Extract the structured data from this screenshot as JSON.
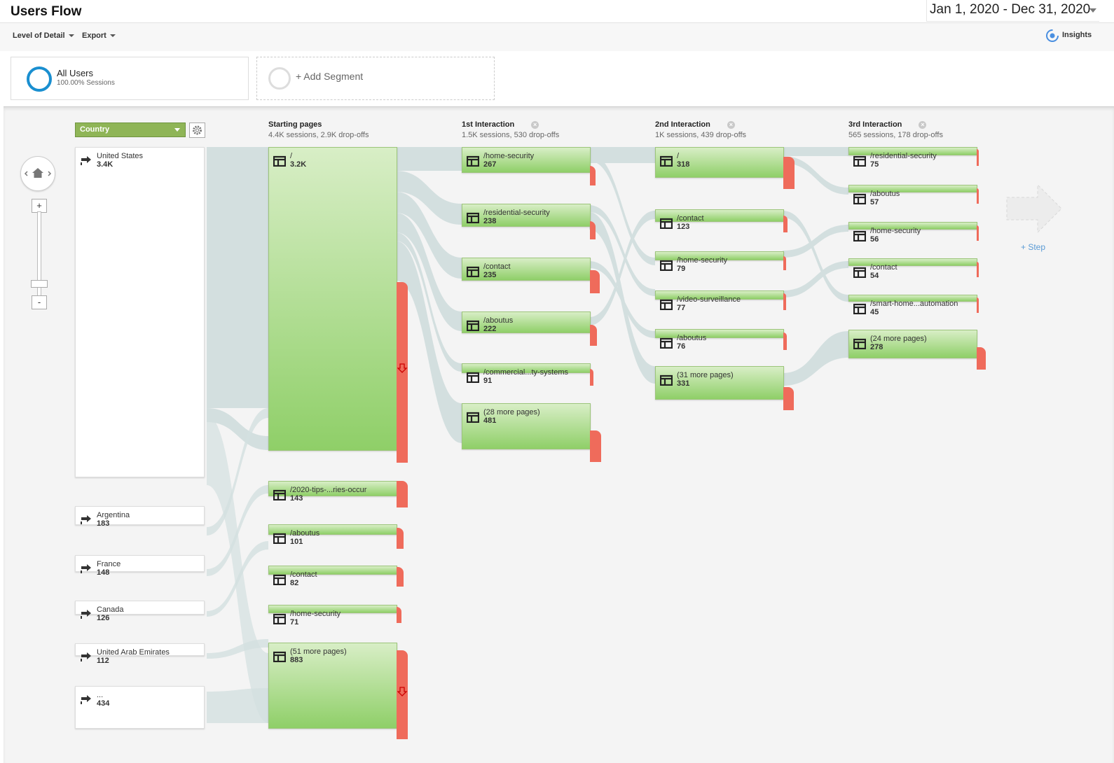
{
  "header": {
    "title": "Users Flow",
    "date_range": "Jan 1, 2020 - Dec 31, 2020"
  },
  "toolbar": {
    "level_of_detail": "Level of Detail",
    "export": "Export",
    "insights": "Insights"
  },
  "segments": {
    "all_users": {
      "name": "All Users",
      "sub": "100.00% Sessions"
    },
    "add": "+ Add Segment"
  },
  "dimension": {
    "selected": "Country"
  },
  "columns": {
    "starting": {
      "title": "Starting pages",
      "summary": "4.4K sessions, 2.9K drop-offs"
    },
    "first": {
      "title": "1st Interaction",
      "summary": "1.5K sessions, 530 drop-offs"
    },
    "second": {
      "title": "2nd Interaction",
      "summary": "1K sessions, 439 drop-offs"
    },
    "third": {
      "title": "3rd Interaction",
      "summary": "565 sessions, 178 drop-offs"
    }
  },
  "countries": [
    {
      "name": "United States",
      "value": "3.4K"
    },
    {
      "name": "Argentina",
      "value": "183"
    },
    {
      "name": "France",
      "value": "148"
    },
    {
      "name": "Canada",
      "value": "126"
    },
    {
      "name": "United Arab Emirates",
      "value": "112"
    },
    {
      "name": "...",
      "value": "434"
    }
  ],
  "starting_pages": [
    {
      "name": "/",
      "value": "3.2K"
    },
    {
      "name": "/2020-tips-...ries-occur",
      "value": "143"
    },
    {
      "name": "/aboutus",
      "value": "101"
    },
    {
      "name": "/contact",
      "value": "82"
    },
    {
      "name": "/home-security",
      "value": "71"
    },
    {
      "name": "(51 more pages)",
      "value": "883"
    }
  ],
  "first_interaction": [
    {
      "name": "/home-security",
      "value": "267"
    },
    {
      "name": "/residential-security",
      "value": "238"
    },
    {
      "name": "/contact",
      "value": "235"
    },
    {
      "name": "/aboutus",
      "value": "222"
    },
    {
      "name": "/commercial...ty-systems",
      "value": "91"
    },
    {
      "name": "(28 more pages)",
      "value": "481"
    }
  ],
  "second_interaction": [
    {
      "name": "/",
      "value": "318"
    },
    {
      "name": "/contact",
      "value": "123"
    },
    {
      "name": "/home-security",
      "value": "79"
    },
    {
      "name": "/video-surveillance",
      "value": "77"
    },
    {
      "name": "/aboutus",
      "value": "76"
    },
    {
      "name": "(31 more pages)",
      "value": "331"
    }
  ],
  "third_interaction": [
    {
      "name": "/residential-security",
      "value": "75"
    },
    {
      "name": "/aboutus",
      "value": "57"
    },
    {
      "name": "/home-security",
      "value": "56"
    },
    {
      "name": "/contact",
      "value": "54"
    },
    {
      "name": "/smart-home...automation",
      "value": "45"
    },
    {
      "name": "(24 more pages)",
      "value": "278"
    }
  ],
  "step": {
    "label": "+ Step"
  }
}
